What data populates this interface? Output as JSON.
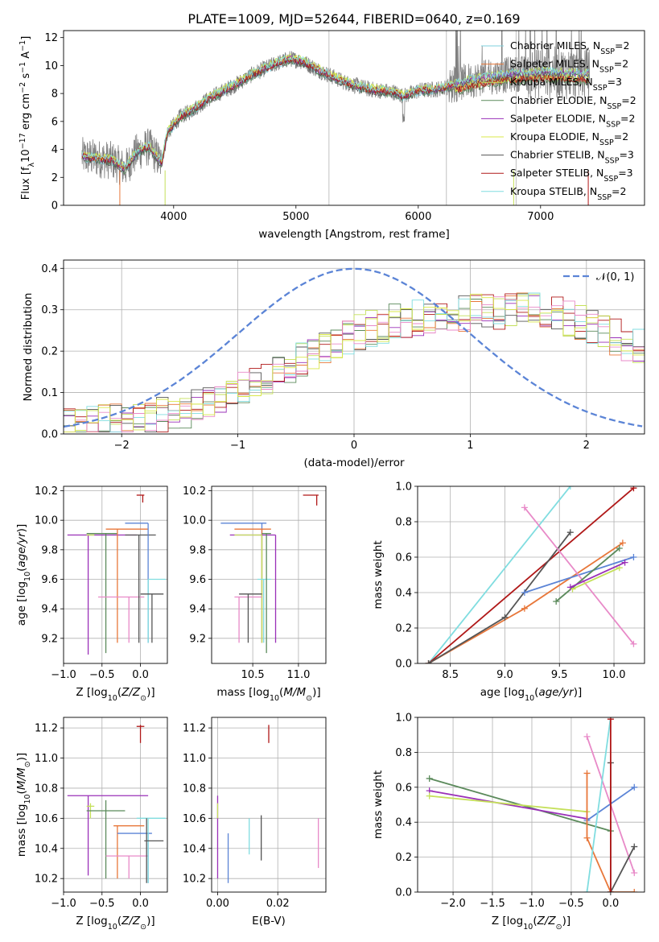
{
  "figure": {
    "title": "PLATE=1009, MJD=52644, FIBERID=0640, z=0.169"
  },
  "chart_data": [
    {
      "id": "spectrum",
      "type": "line",
      "xlabel": "wavelength [Angstrom, rest frame]",
      "ylabel": "Flux [f",
      "ylabel_full": "Flux [fλ10^-17 erg cm^-2 s^-1 A^-1]",
      "xlim": [
        3100,
        7850
      ],
      "ylim": [
        0,
        12.5
      ],
      "xticks": [
        4000,
        5000,
        6000,
        7000
      ],
      "yticks": [
        0,
        2,
        4,
        6,
        8,
        10,
        12
      ],
      "grid": false,
      "legend_position": "top-right",
      "series": [
        {
          "name": "Chabrier MILES, N_SSP=2",
          "label": "Chabrier MILES, N",
          "sub": "SSP",
          "suffix": "=2",
          "color": "#7fd0dc"
        },
        {
          "name": "Salpeter MILES, N_SSP=2",
          "label": "Salpeter MILES, N",
          "sub": "SSP",
          "suffix": "=2",
          "color": "#e8773a"
        },
        {
          "name": "Kroupa MILES, N_SSP=3",
          "label": "Kroupa MILES, N",
          "sub": "SSP",
          "suffix": "=3",
          "color": "#c5e05a"
        },
        {
          "name": "Chabrier ELODIE, N_SSP=2",
          "label": "Chabrier ELODIE, N",
          "sub": "SSP",
          "suffix": "=2",
          "color": "#5b8a5b"
        },
        {
          "name": "Salpeter ELODIE, N_SSP=2",
          "label": "Salpeter ELODIE, N",
          "sub": "SSP",
          "suffix": "=2",
          "color": "#9a30b8"
        },
        {
          "name": "Kroupa ELODIE, N_SSP=2",
          "label": "Kroupa ELODIE, N",
          "sub": "SSP",
          "suffix": "=2",
          "color": "#d9e84a"
        },
        {
          "name": "Chabrier STELIB, N_SSP=3",
          "label": "Chabrier STELIB, N",
          "sub": "SSP",
          "suffix": "=3",
          "color": "#555555"
        },
        {
          "name": "Salpeter STELIB, N_SSP=3",
          "label": "Salpeter STELIB, N",
          "sub": "SSP",
          "suffix": "=3",
          "color": "#b01818"
        },
        {
          "name": "Kroupa STELIB, N_SSP=2",
          "label": "Kroupa STELIB, N",
          "sub": "SSP",
          "suffix": "=2",
          "color": "#80dde0"
        }
      ],
      "data_color": "#808080",
      "continuum_nodes": [
        [
          3250,
          3.5
        ],
        [
          3500,
          3.2
        ],
        [
          3600,
          2.6
        ],
        [
          3700,
          3.8
        ],
        [
          3800,
          4.2
        ],
        [
          3900,
          3.0
        ],
        [
          3950,
          5.2
        ],
        [
          4050,
          6.3
        ],
        [
          4150,
          6.8
        ],
        [
          4300,
          7.7
        ],
        [
          4500,
          8.6
        ],
        [
          4650,
          9.4
        ],
        [
          4800,
          10.0
        ],
        [
          4950,
          10.5
        ],
        [
          5050,
          10.3
        ],
        [
          5200,
          9.6
        ],
        [
          5400,
          8.8
        ],
        [
          5600,
          8.3
        ],
        [
          5800,
          8.1
        ],
        [
          5880,
          7.8
        ],
        [
          6000,
          8.2
        ],
        [
          6150,
          8.3
        ],
        [
          6300,
          8.6
        ],
        [
          6400,
          8.9
        ],
        [
          6600,
          9.2
        ],
        [
          6800,
          9.4
        ],
        [
          7000,
          9.5
        ],
        [
          7400,
          9.4
        ]
      ],
      "vertical_lines": [
        5270,
        6230,
        6800
      ]
    },
    {
      "id": "residuals",
      "type": "line",
      "xlabel": "(data-model)/error",
      "ylabel": "Normed distribution",
      "xlim": [
        -2.5,
        2.5
      ],
      "ylim": [
        0,
        0.42
      ],
      "xticks": [
        -2,
        -1,
        0,
        1,
        2
      ],
      "yticks": [
        0.0,
        0.1,
        0.2,
        0.3,
        0.4
      ],
      "grid": true,
      "legend_position": "top-right",
      "legend_label": "N(0, 1)",
      "gaussian_color": "#5b84d6"
    },
    {
      "id": "age_vs_Z",
      "type": "scatter",
      "xlabel": "Z [log",
      "ylabel": "age  [log",
      "xlim": [
        -1.0,
        0.35
      ],
      "ylim": [
        9.03,
        10.23
      ],
      "xticks": [
        -1.0,
        -0.5,
        0.0
      ],
      "yticks": [
        9.2,
        9.4,
        9.6,
        9.8,
        10.0,
        10.2
      ],
      "grid": true
    },
    {
      "id": "age_vs_mass",
      "type": "scatter",
      "xlabel": "mass [log",
      "ylabel": "",
      "xlim": [
        10.05,
        11.3
      ],
      "ylim": [
        9.03,
        10.23
      ],
      "xticks": [
        10.5,
        11.0
      ],
      "yticks": [
        9.2,
        9.4,
        9.6,
        9.8,
        10.0,
        10.2
      ],
      "grid": true
    },
    {
      "id": "massweight_vs_age",
      "type": "line",
      "xlabel": "age  [log",
      "ylabel": "mass weight",
      "xlim": [
        8.2,
        10.28
      ],
      "ylim": [
        0,
        1
      ],
      "xticks": [
        8.5,
        9.0,
        9.5,
        10.0
      ],
      "yticks": [
        0.0,
        0.2,
        0.4,
        0.6,
        0.8,
        1.0
      ],
      "grid": true,
      "series": [
        {
          "color": "#80dde0",
          "points": [
            [
              8.3,
              0.0
            ],
            [
              9.6,
              1.0
            ]
          ]
        },
        {
          "color": "#b01818",
          "points": [
            [
              8.3,
              0.0
            ],
            [
              10.18,
              0.99
            ]
          ]
        },
        {
          "color": "#e8773a",
          "points": [
            [
              8.3,
              0.0
            ],
            [
              9.18,
              0.31
            ],
            [
              10.08,
              0.68
            ]
          ]
        },
        {
          "color": "#555555",
          "points": [
            [
              8.3,
              0.0
            ],
            [
              9.0,
              0.26
            ],
            [
              9.6,
              0.74
            ]
          ]
        },
        {
          "color": "#5b84d6",
          "points": [
            [
              9.18,
              0.4
            ],
            [
              10.18,
              0.6
            ]
          ]
        },
        {
          "color": "#e88ac8",
          "points": [
            [
              9.18,
              0.88
            ],
            [
              10.18,
              0.11
            ]
          ]
        },
        {
          "color": "#5b8a5b",
          "points": [
            [
              9.47,
              0.35
            ],
            [
              10.05,
              0.65
            ]
          ]
        },
        {
          "color": "#c5e05a",
          "points": [
            [
              9.62,
              0.42
            ],
            [
              10.05,
              0.54
            ]
          ]
        },
        {
          "color": "#9a30b8",
          "points": [
            [
              9.6,
              0.43
            ],
            [
              10.1,
              0.57
            ]
          ]
        }
      ]
    },
    {
      "id": "mass_vs_Z",
      "type": "scatter",
      "xlabel": "Z [log",
      "ylabel": "mass [log",
      "xlim": [
        -1.0,
        0.35
      ],
      "ylim": [
        10.11,
        11.27
      ],
      "xticks": [
        -1.0,
        -0.5,
        0.0
      ],
      "yticks": [
        10.2,
        10.4,
        10.6,
        10.8,
        11.0,
        11.2
      ],
      "grid": true
    },
    {
      "id": "mass_vs_EBV",
      "type": "scatter",
      "xlabel": "E(B-V)",
      "ylabel": "",
      "xlim": [
        -0.002,
        0.036
      ],
      "ylim": [
        10.11,
        11.27
      ],
      "xticks": [
        0.0,
        0.02
      ],
      "xticklabels": [
        "0.00",
        "0.02"
      ],
      "yticks": [
        10.2,
        10.4,
        10.6,
        10.8,
        11.0,
        11.2
      ],
      "grid": true
    },
    {
      "id": "massweight_vs_Z",
      "type": "line",
      "xlabel": "Z [log",
      "ylabel": "mass weight",
      "xlim": [
        -2.45,
        0.43
      ],
      "ylim": [
        0,
        1
      ],
      "xticks": [
        -2.0,
        -1.5,
        -1.0,
        -0.5,
        0.0
      ],
      "yticks": [
        0.0,
        0.2,
        0.4,
        0.6,
        0.8,
        1.0
      ],
      "grid": true,
      "series": [
        {
          "color": "#5b8a5b",
          "points": [
            [
              -2.3,
              0.65
            ],
            [
              0.0,
              0.35
            ]
          ]
        },
        {
          "color": "#9a30b8",
          "points": [
            [
              -2.3,
              0.58
            ],
            [
              -0.3,
              0.42
            ]
          ]
        },
        {
          "color": "#c5e05a",
          "points": [
            [
              -2.3,
              0.55
            ],
            [
              -0.3,
              0.46
            ]
          ]
        },
        {
          "color": "#5b84d6",
          "points": [
            [
              -0.3,
              0.41
            ],
            [
              0.3,
              0.6
            ]
          ]
        },
        {
          "color": "#e88ac8",
          "points": [
            [
              -0.3,
              0.89
            ],
            [
              0.3,
              0.11
            ]
          ]
        },
        {
          "color": "#e8773a",
          "points": [
            [
              -0.3,
              0.68
            ],
            [
              -0.3,
              0.31
            ],
            [
              0.0,
              0.0
            ],
            [
              0.3,
              0.0
            ]
          ]
        },
        {
          "color": "#555555",
          "points": [
            [
              0.0,
              0.74
            ],
            [
              0.0,
              0.0
            ],
            [
              0.3,
              0.26
            ]
          ]
        },
        {
          "color": "#80dde0",
          "points": [
            [
              -0.3,
              0.0
            ],
            [
              0.0,
              1.0
            ]
          ]
        },
        {
          "color": "#b01818",
          "points": [
            [
              0.0,
              0.0
            ],
            [
              0.0,
              0.99
            ]
          ]
        }
      ]
    }
  ]
}
